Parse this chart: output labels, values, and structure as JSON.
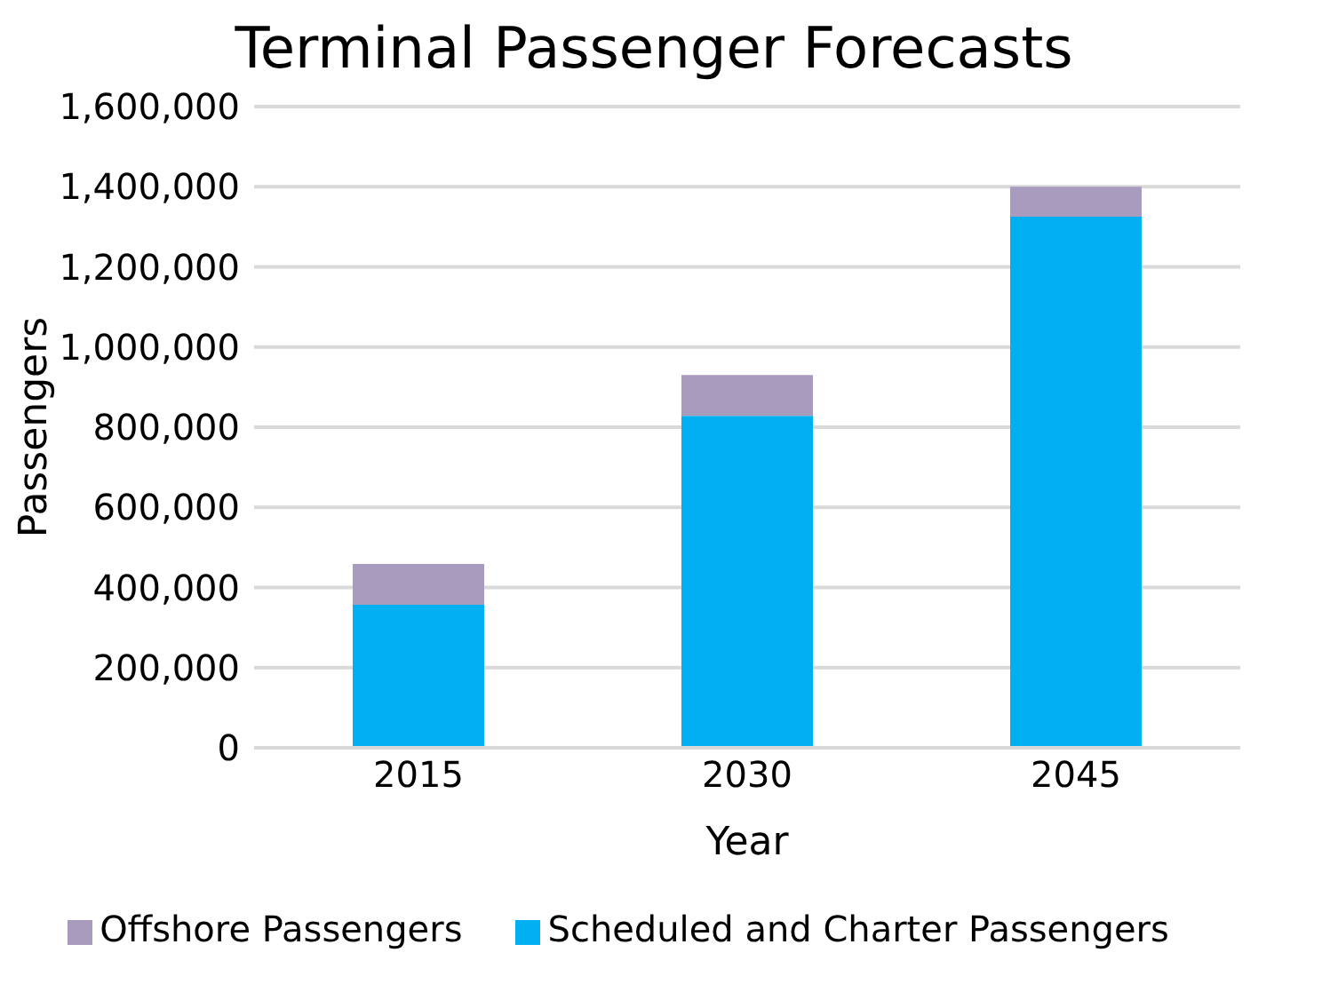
{
  "chart_data": {
    "type": "bar",
    "title": "Terminal Passenger Forecasts",
    "xlabel": "Year",
    "ylabel": "Passengers",
    "categories": [
      "2015",
      "2030",
      "2045"
    ],
    "stacked": true,
    "series": [
      {
        "name": "Scheduled and Charter Passengers",
        "color": "#00b0f0",
        "values": [
          357000,
          828000,
          1325000
        ]
      },
      {
        "name": "Offshore Passengers",
        "color": "#a99bbd",
        "values": [
          102000,
          102000,
          75000
        ]
      }
    ],
    "ylim": [
      0,
      1600000
    ],
    "yticks": [
      0,
      {
        "value": 200000,
        "label": "200,000"
      },
      {
        "value": 400000,
        "label": "400,000"
      },
      {
        "value": 600000,
        "label": "600,000"
      },
      {
        "value": 800000,
        "label": "800,000"
      },
      {
        "value": 1000000,
        "label": "1,000,000"
      },
      {
        "value": 1200000,
        "label": "1,200,000"
      },
      {
        "value": 1400000,
        "label": "1,400,000"
      },
      {
        "value": 1600000,
        "label": "1,600,000"
      }
    ],
    "grid": "y",
    "legend": "bottom"
  }
}
